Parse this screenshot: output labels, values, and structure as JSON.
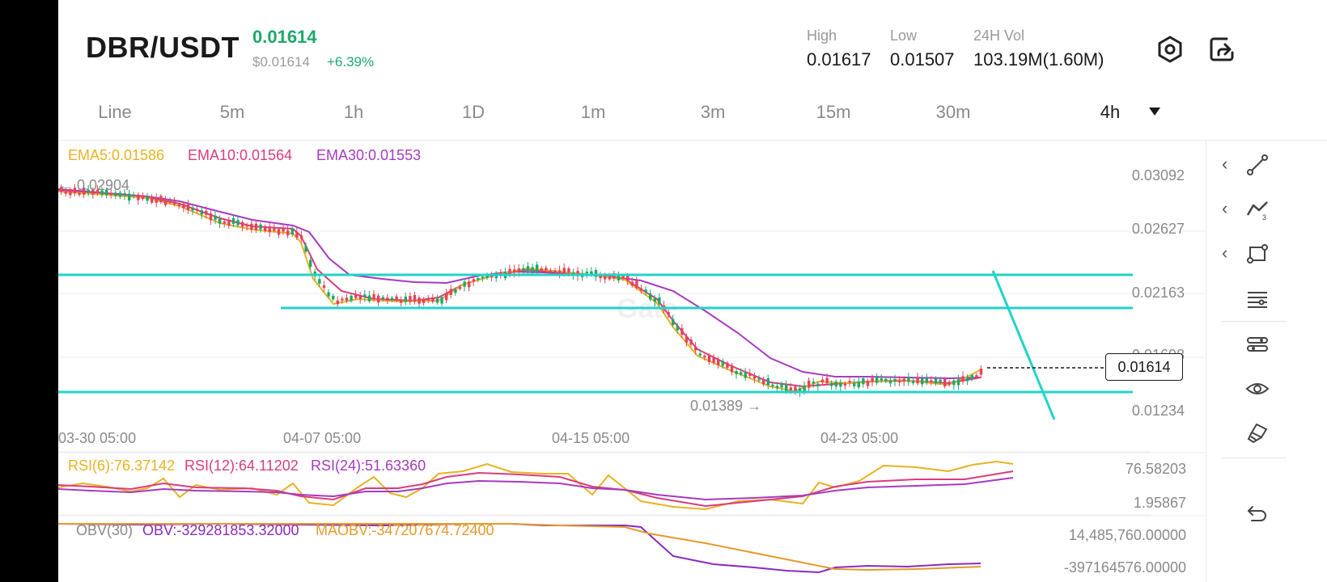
{
  "header": {
    "pair": "DBR/USDT",
    "last_price": "0.01614",
    "usd_price": "$0.01614",
    "change_pct": "+6.39%",
    "high_label": "High",
    "high_value": "0.01617",
    "low_label": "Low",
    "low_value": "0.01507",
    "vol_label": "24H Vol",
    "vol_value": "103.19M(1.60M)",
    "settings_icon": "hexagon-settings-icon",
    "share_icon": "share-icon"
  },
  "tabs": [
    {
      "label": "Line"
    },
    {
      "label": "5m"
    },
    {
      "label": "1h"
    },
    {
      "label": "1D"
    },
    {
      "label": "1m"
    },
    {
      "label": "3m"
    },
    {
      "label": "15m"
    },
    {
      "label": "30m"
    },
    {
      "label": "4h",
      "active": true
    }
  ],
  "chart": {
    "ema5": "EMA5:0.01586",
    "ema10": "EMA10:0.01564",
    "ema30": "EMA30:0.01553",
    "y_ticks": [
      "0.03092",
      "0.02627",
      "0.02163",
      "0.01698",
      "0.01234"
    ],
    "x_ticks": [
      "03-30 05:00",
      "04-07 05:00",
      "04-15 05:00",
      "04-23 05:00"
    ],
    "high_marker": "← 0.02904",
    "low_marker": "0.01389 →",
    "current_price": "0.01614",
    "watermark": "Gate"
  },
  "rsi": {
    "rsi6": "RSI(6):76.37142",
    "rsi12": "RSI(12):64.11202",
    "rsi24": "RSI(24):51.63360",
    "top": "76.58203",
    "bottom": "1.95867"
  },
  "obv": {
    "label": "OBV(30)",
    "obv": "OBV:-329281853.32000",
    "maobv": "MAOBV:-347207674.72400",
    "top": "14,485,760.00000",
    "bottom": "-397164576.00000"
  },
  "tools": [
    "line-tool-icon",
    "trend-tool-icon",
    "rect-tool-icon",
    "settings-lines-icon",
    "indicator-icon",
    "eye-icon",
    "eraser-icon",
    "undo-icon"
  ],
  "colors": {
    "up": "#1ea86b",
    "down": "#e3445b",
    "ema5": "#e8b223",
    "ema10": "#d93d7e",
    "ema30": "#a63bbf",
    "drawn_lines": "#22d3c8",
    "obv": "#8a2bbd",
    "maobv": "#e59a2c"
  }
}
